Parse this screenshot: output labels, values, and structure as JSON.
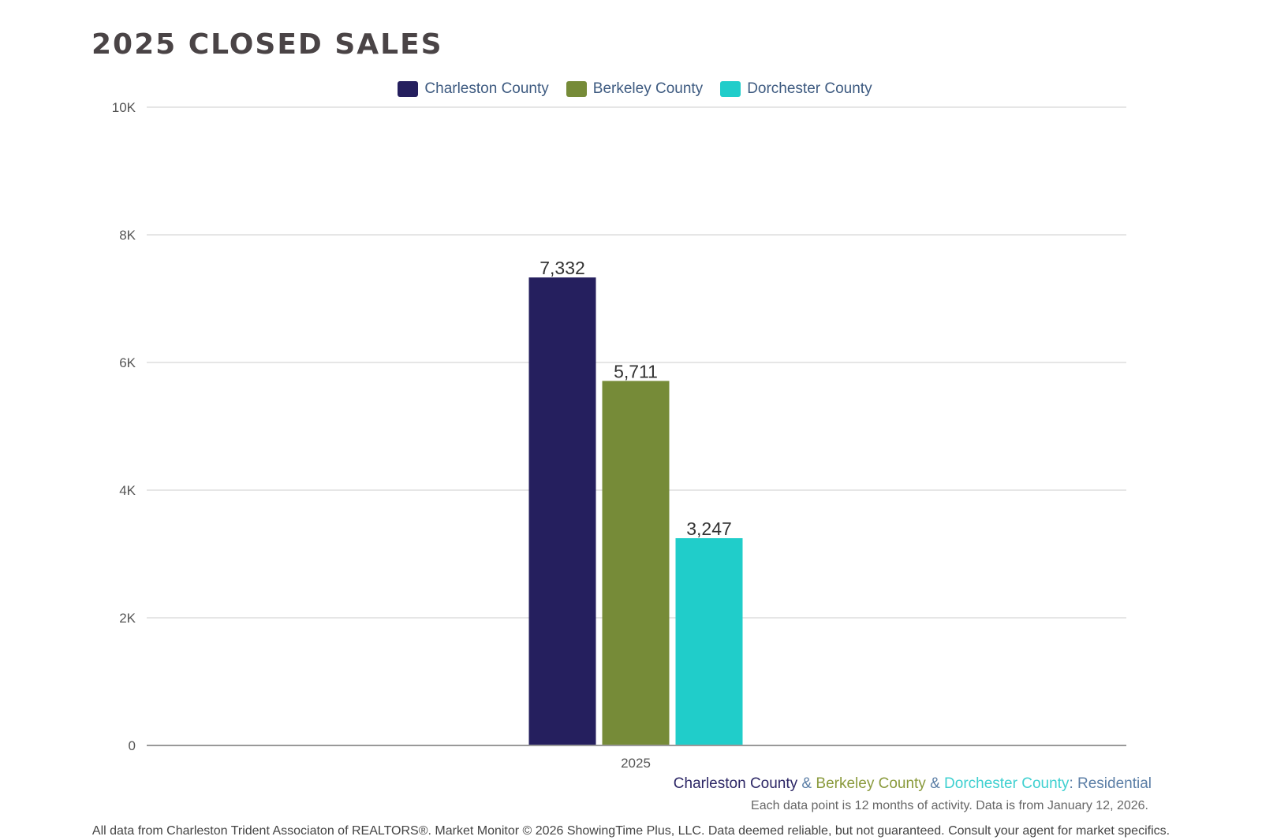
{
  "title": "2025 CLOSED SALES",
  "chart_data": {
    "type": "bar",
    "title": "2025 CLOSED SALES",
    "categories": [
      "2025"
    ],
    "series": [
      {
        "name": "Charleston County",
        "values": [
          7332
        ],
        "label": "7,332",
        "color": "#251f5e"
      },
      {
        "name": "Berkeley County",
        "values": [
          5711
        ],
        "label": "5,711",
        "color": "#768b38"
      },
      {
        "name": "Dorchester County",
        "values": [
          3247
        ],
        "label": "3,247",
        "color": "#20cdca"
      }
    ],
    "ylim": [
      0,
      10000
    ],
    "yticks": [
      0,
      2000,
      4000,
      6000,
      8000,
      10000
    ],
    "ytick_labels": [
      "0",
      "2K",
      "4K",
      "6K",
      "8K",
      "10K"
    ],
    "xlabel": "",
    "ylabel": "",
    "grid": true,
    "legend": "top-center"
  },
  "subtitle": {
    "parts": [
      "Charleston County",
      " & ",
      "Berkeley County",
      " & ",
      "Dorchester County",
      ": Residential"
    ],
    "colors": [
      "#2d2766",
      "#5b7ea6",
      "#8a9a3c",
      "#5b7ea6",
      "#3fd0d0",
      "#5b7ea6"
    ]
  },
  "note": "Each data point is 12 months of activity. Data is from January 12, 2026.",
  "footer": "All data from Charleston Trident Associaton of REALTORS®. Market Monitor © 2026 ShowingTime Plus, LLC. Data deemed reliable, but not guaranteed. Consult your agent for market specifics."
}
